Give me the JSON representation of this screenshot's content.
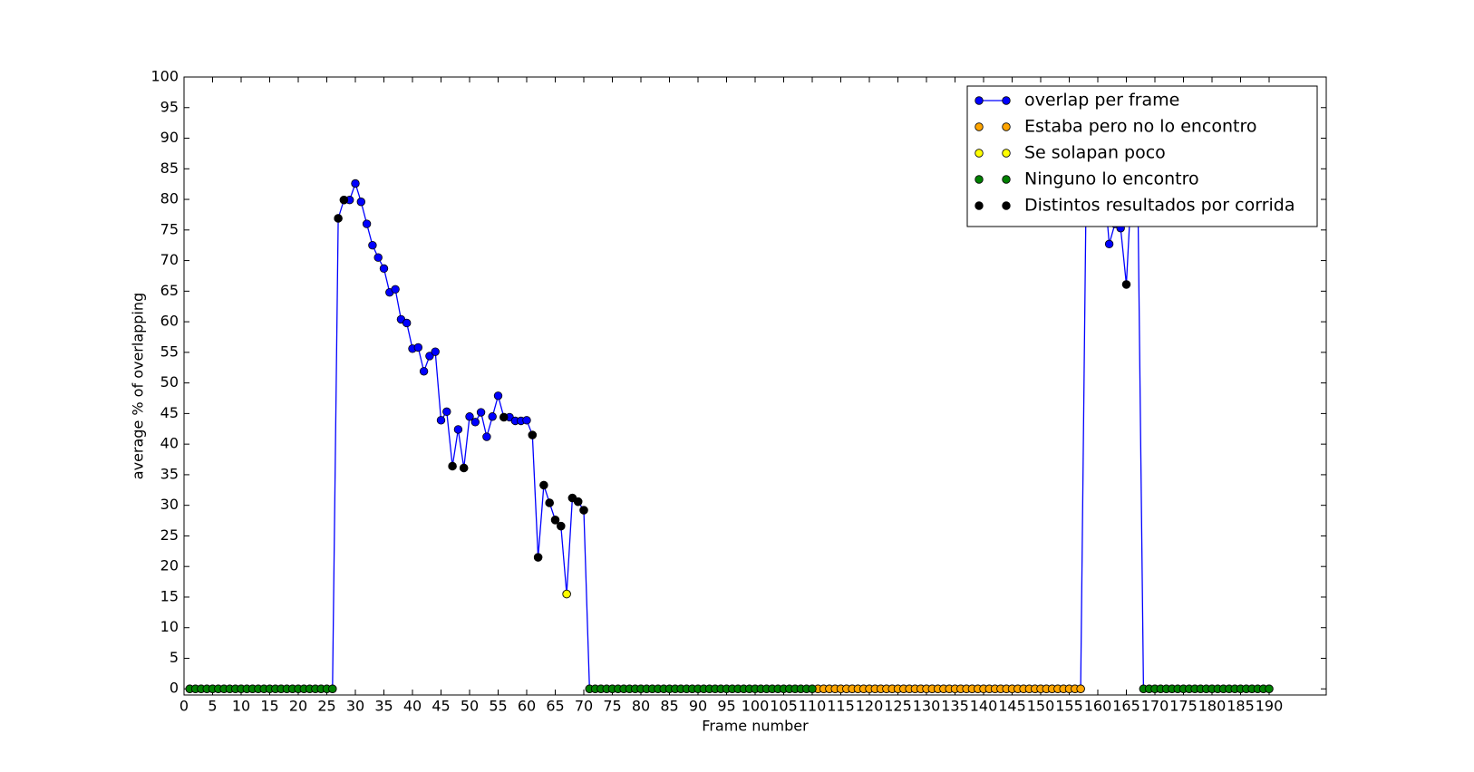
{
  "chart_data": {
    "type": "line",
    "xlabel": "Frame number",
    "ylabel": "average % of overlapping",
    "xlim": [
      0,
      200
    ],
    "ylim": [
      -1,
      100
    ],
    "xticks": [
      0,
      5,
      10,
      15,
      20,
      25,
      30,
      35,
      40,
      45,
      50,
      55,
      60,
      65,
      70,
      75,
      80,
      85,
      90,
      95,
      100,
      105,
      110,
      115,
      120,
      125,
      130,
      135,
      140,
      145,
      150,
      155,
      160,
      165,
      170,
      175,
      180,
      185,
      190
    ],
    "yticks": [
      0,
      5,
      10,
      15,
      20,
      25,
      30,
      35,
      40,
      45,
      50,
      55,
      60,
      65,
      70,
      75,
      80,
      85,
      90,
      95,
      100
    ],
    "legend": "upper right",
    "series": [
      {
        "name": "overlap per frame",
        "color": "#0000ff",
        "line": true,
        "x": [
          1,
          2,
          3,
          4,
          5,
          6,
          7,
          8,
          9,
          10,
          11,
          12,
          13,
          14,
          15,
          16,
          17,
          18,
          19,
          20,
          21,
          22,
          23,
          24,
          25,
          26,
          27,
          28,
          29,
          30,
          31,
          32,
          33,
          34,
          35,
          36,
          37,
          38,
          39,
          40,
          41,
          42,
          43,
          44,
          45,
          46,
          47,
          48,
          49,
          50,
          51,
          52,
          53,
          54,
          55,
          56,
          57,
          58,
          59,
          60,
          61,
          62,
          63,
          64,
          65,
          66,
          67,
          68,
          69,
          70,
          71,
          72,
          73,
          74,
          75,
          76,
          77,
          78,
          79,
          80,
          81,
          82,
          83,
          84,
          85,
          86,
          87,
          88,
          89,
          90,
          91,
          92,
          93,
          94,
          95,
          96,
          97,
          98,
          99,
          100,
          101,
          102,
          103,
          104,
          105,
          106,
          107,
          108,
          109,
          110,
          111,
          112,
          113,
          114,
          115,
          116,
          117,
          118,
          119,
          120,
          121,
          122,
          123,
          124,
          125,
          126,
          127,
          128,
          129,
          130,
          131,
          132,
          133,
          134,
          135,
          136,
          137,
          138,
          139,
          140,
          141,
          142,
          143,
          144,
          145,
          146,
          147,
          148,
          149,
          150,
          151,
          152,
          153,
          154,
          155,
          156,
          157,
          158,
          159,
          160,
          161,
          162,
          163,
          164,
          165,
          166,
          167,
          168,
          169,
          170,
          171,
          172,
          173,
          174,
          175,
          176,
          177,
          178,
          179,
          180,
          181,
          182,
          183,
          184,
          185,
          186,
          187,
          188,
          189,
          190
        ],
        "values": [
          0,
          0,
          0,
          0,
          0,
          0,
          0,
          0,
          0,
          0,
          0,
          0,
          0,
          0,
          0,
          0,
          0,
          0,
          0,
          0,
          0,
          0,
          0,
          0,
          0,
          0,
          76.9,
          79.9,
          79.9,
          82.6,
          79.6,
          76.0,
          72.5,
          70.5,
          68.7,
          64.8,
          65.3,
          60.4,
          59.8,
          55.6,
          55.8,
          51.9,
          54.4,
          55.1,
          43.9,
          45.3,
          36.4,
          42.4,
          36.1,
          44.5,
          43.6,
          45.2,
          41.2,
          44.5,
          47.9,
          44.4,
          44.4,
          43.8,
          43.8,
          43.9,
          41.5,
          21.5,
          33.3,
          30.4,
          27.6,
          26.6,
          15.5,
          31.2,
          30.6,
          29.2,
          0,
          0,
          0,
          0,
          0,
          0,
          0,
          0,
          0,
          0,
          0,
          0,
          0,
          0,
          0,
          0,
          0,
          0,
          0,
          0,
          0,
          0,
          0,
          0,
          0,
          0,
          0,
          0,
          0,
          0,
          0,
          0,
          0,
          0,
          0,
          0,
          0,
          0,
          0,
          0,
          0,
          0,
          0,
          0,
          0,
          0,
          0,
          0,
          0,
          0,
          0,
          0,
          0,
          0,
          0,
          0,
          0,
          0,
          0,
          0,
          0,
          0,
          0,
          0,
          0,
          0,
          0,
          0,
          0,
          0,
          0,
          0,
          0,
          0,
          0,
          0,
          0,
          0,
          0,
          0,
          0,
          0,
          0,
          0,
          0,
          0,
          0,
          85,
          88,
          86,
          84,
          72.7,
          76,
          75.3,
          66.1,
          84,
          82,
          0,
          0,
          0,
          0,
          0,
          0,
          0,
          0,
          0,
          0,
          0,
          0,
          0,
          0,
          0,
          0,
          0,
          0,
          0,
          0,
          0,
          0,
          0
        ]
      },
      {
        "name": "Estaba pero no lo encontro",
        "color": "#ffa500",
        "x": [
          111,
          112,
          113,
          114,
          115,
          116,
          117,
          118,
          119,
          120,
          121,
          122,
          123,
          124,
          125,
          126,
          127,
          128,
          129,
          130,
          131,
          132,
          133,
          134,
          135,
          136,
          137,
          138,
          139,
          140,
          141,
          142,
          143,
          144,
          145,
          146,
          147,
          148,
          149,
          150,
          151,
          152,
          153,
          154,
          155,
          156,
          157
        ],
        "values": [
          0,
          0,
          0,
          0,
          0,
          0,
          0,
          0,
          0,
          0,
          0,
          0,
          0,
          0,
          0,
          0,
          0,
          0,
          0,
          0,
          0,
          0,
          0,
          0,
          0,
          0,
          0,
          0,
          0,
          0,
          0,
          0,
          0,
          0,
          0,
          0,
          0,
          0,
          0,
          0,
          0,
          0,
          0,
          0,
          0,
          0,
          0
        ]
      },
      {
        "name": "Se solapan poco",
        "color": "#ffff00",
        "x": [
          67
        ],
        "values": [
          15.5
        ]
      },
      {
        "name": "Ninguno lo encontro",
        "color": "#008000",
        "x": [
          1,
          2,
          3,
          4,
          5,
          6,
          7,
          8,
          9,
          10,
          11,
          12,
          13,
          14,
          15,
          16,
          17,
          18,
          19,
          20,
          21,
          22,
          23,
          24,
          25,
          26,
          71,
          72,
          73,
          74,
          75,
          76,
          77,
          78,
          79,
          80,
          81,
          82,
          83,
          84,
          85,
          86,
          87,
          88,
          89,
          90,
          91,
          92,
          93,
          94,
          95,
          96,
          97,
          98,
          99,
          100,
          101,
          102,
          103,
          104,
          105,
          106,
          107,
          108,
          109,
          110,
          168,
          169,
          170,
          171,
          172,
          173,
          174,
          175,
          176,
          177,
          178,
          179,
          180,
          181,
          182,
          183,
          184,
          185,
          186,
          187,
          188,
          189,
          190
        ],
        "values": [
          0,
          0,
          0,
          0,
          0,
          0,
          0,
          0,
          0,
          0,
          0,
          0,
          0,
          0,
          0,
          0,
          0,
          0,
          0,
          0,
          0,
          0,
          0,
          0,
          0,
          0,
          0,
          0,
          0,
          0,
          0,
          0,
          0,
          0,
          0,
          0,
          0,
          0,
          0,
          0,
          0,
          0,
          0,
          0,
          0,
          0,
          0,
          0,
          0,
          0,
          0,
          0,
          0,
          0,
          0,
          0,
          0,
          0,
          0,
          0,
          0,
          0,
          0,
          0,
          0,
          0,
          0,
          0,
          0,
          0,
          0,
          0,
          0,
          0,
          0,
          0,
          0,
          0,
          0,
          0,
          0,
          0,
          0,
          0,
          0,
          0,
          0,
          0,
          0
        ]
      },
      {
        "name": "Distintos resultados por corrida",
        "color": "#000000",
        "x": [
          27,
          28,
          47,
          49,
          56,
          61,
          62,
          63,
          64,
          65,
          66,
          68,
          69,
          70,
          165
        ],
        "values": [
          76.9,
          79.9,
          36.4,
          36.1,
          44.4,
          41.5,
          21.5,
          33.3,
          30.4,
          27.6,
          26.6,
          31.2,
          30.6,
          29.2,
          66.1
        ]
      }
    ]
  }
}
